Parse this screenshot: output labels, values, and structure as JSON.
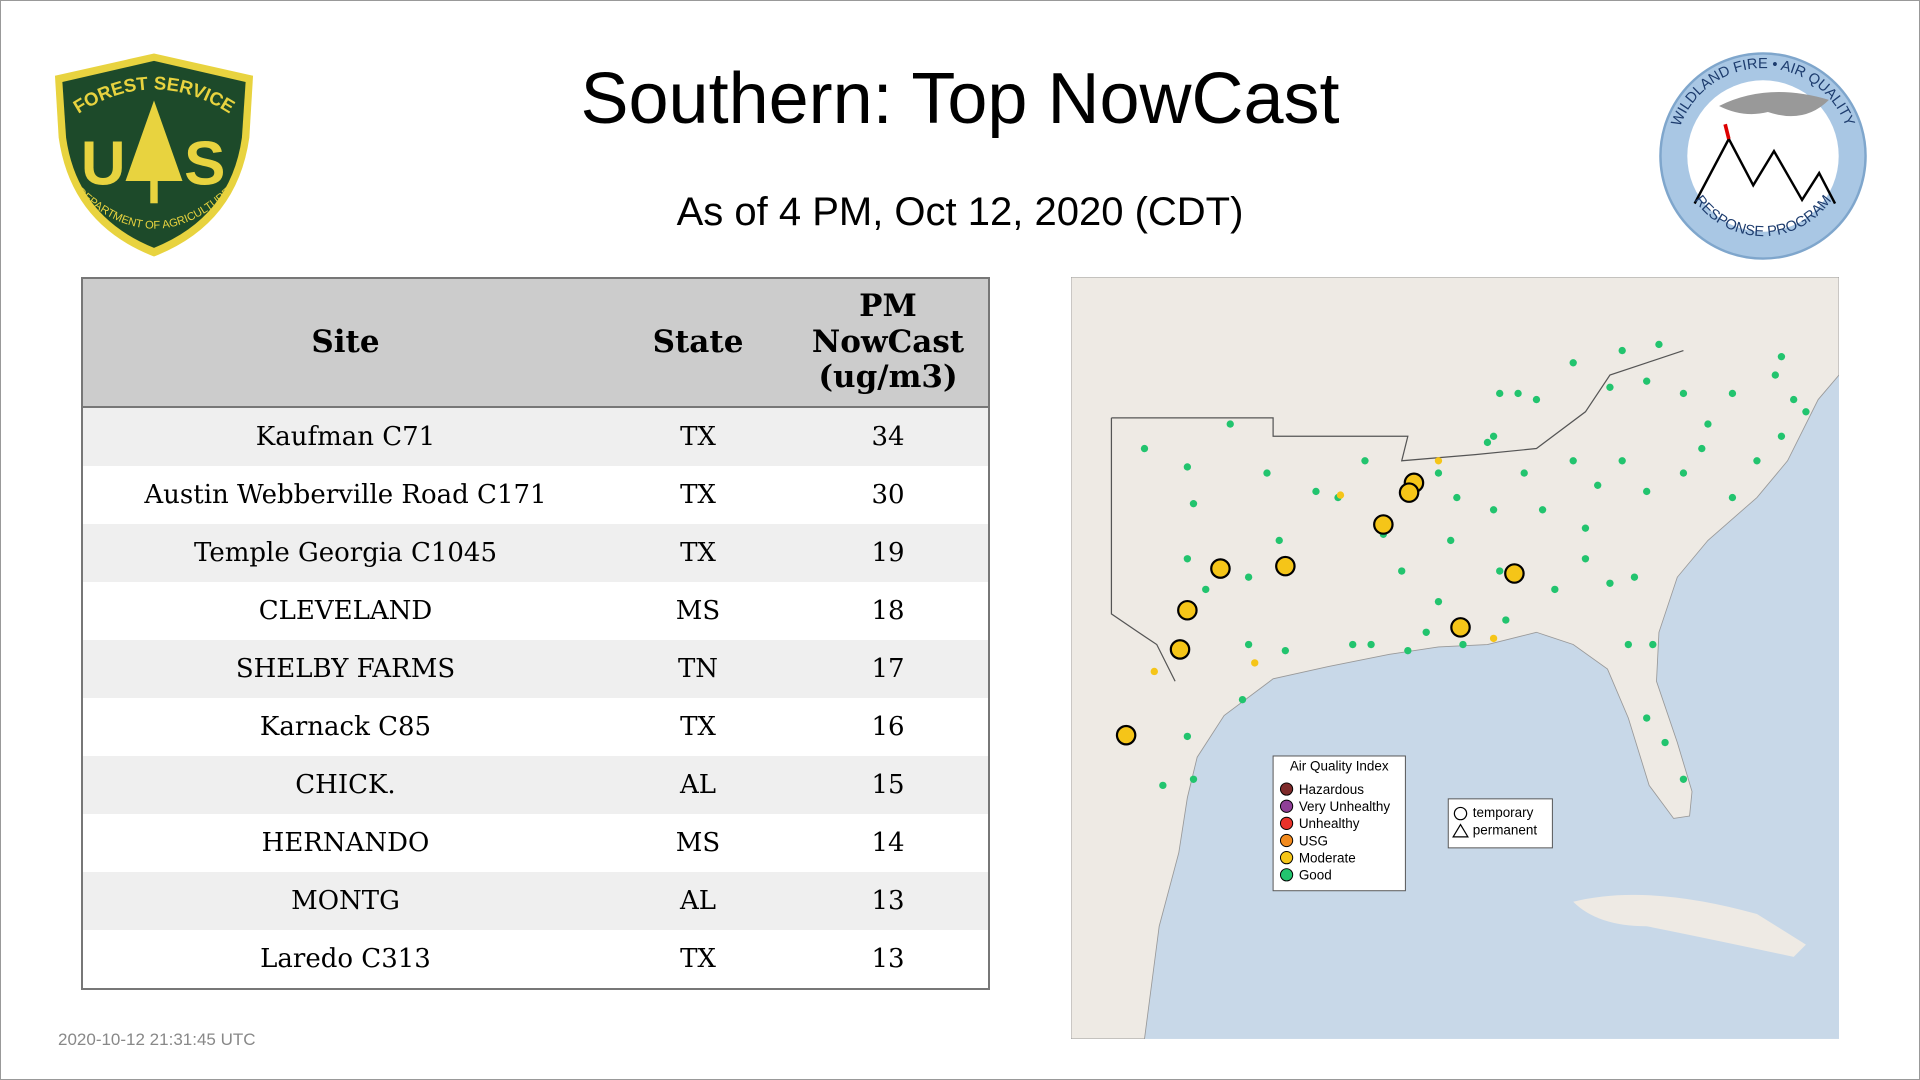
{
  "header": {
    "title": "Southern: Top NowCast",
    "subtitle": "As of  4 PM, Oct 12, 2020 (CDT)"
  },
  "left_logo": {
    "top": "FOREST SERVICE",
    "letters": [
      "U",
      "S"
    ],
    "bottom": "DEPARTMENT OF AGRICULTURE"
  },
  "right_logo": {
    "top": "WILDLAND FIRE • AIR QUALITY",
    "bottom": "RESPONSE PROGRAM"
  },
  "table": {
    "columns": [
      "Site",
      "State",
      "PM NowCast (ug/m3)"
    ],
    "rows": [
      [
        "Kaufman C71",
        "TX",
        34
      ],
      [
        "Austin Webberville Road C171",
        "TX",
        30
      ],
      [
        "Temple Georgia C1045",
        "TX",
        19
      ],
      [
        "CLEVELAND",
        "MS",
        18
      ],
      [
        "SHELBY FARMS",
        "TN",
        17
      ],
      [
        "Karnack C85",
        "TX",
        16
      ],
      [
        "CHICK.",
        "AL",
        15
      ],
      [
        "HERNANDO",
        "MS",
        14
      ],
      [
        "MONTG",
        "AL",
        13
      ],
      [
        "Laredo C313",
        "TX",
        13
      ]
    ]
  },
  "map": {
    "legend": {
      "title": "Air Quality Index",
      "items": [
        {
          "label": "Hazardous",
          "color": "#7e2a2a"
        },
        {
          "label": "Very Unhealthy",
          "color": "#8f3f97"
        },
        {
          "label": "Unhealthy",
          "color": "#e8322a"
        },
        {
          "label": "USG",
          "color": "#f28a1d"
        },
        {
          "label": "Moderate",
          "color": "#f5c518"
        },
        {
          "label": "Good",
          "color": "#22c46e"
        }
      ]
    },
    "shapes": [
      "temporary",
      "permanent"
    ]
  },
  "footer": {
    "timestamp": "2020-10-12 21:31:45 UTC"
  }
}
